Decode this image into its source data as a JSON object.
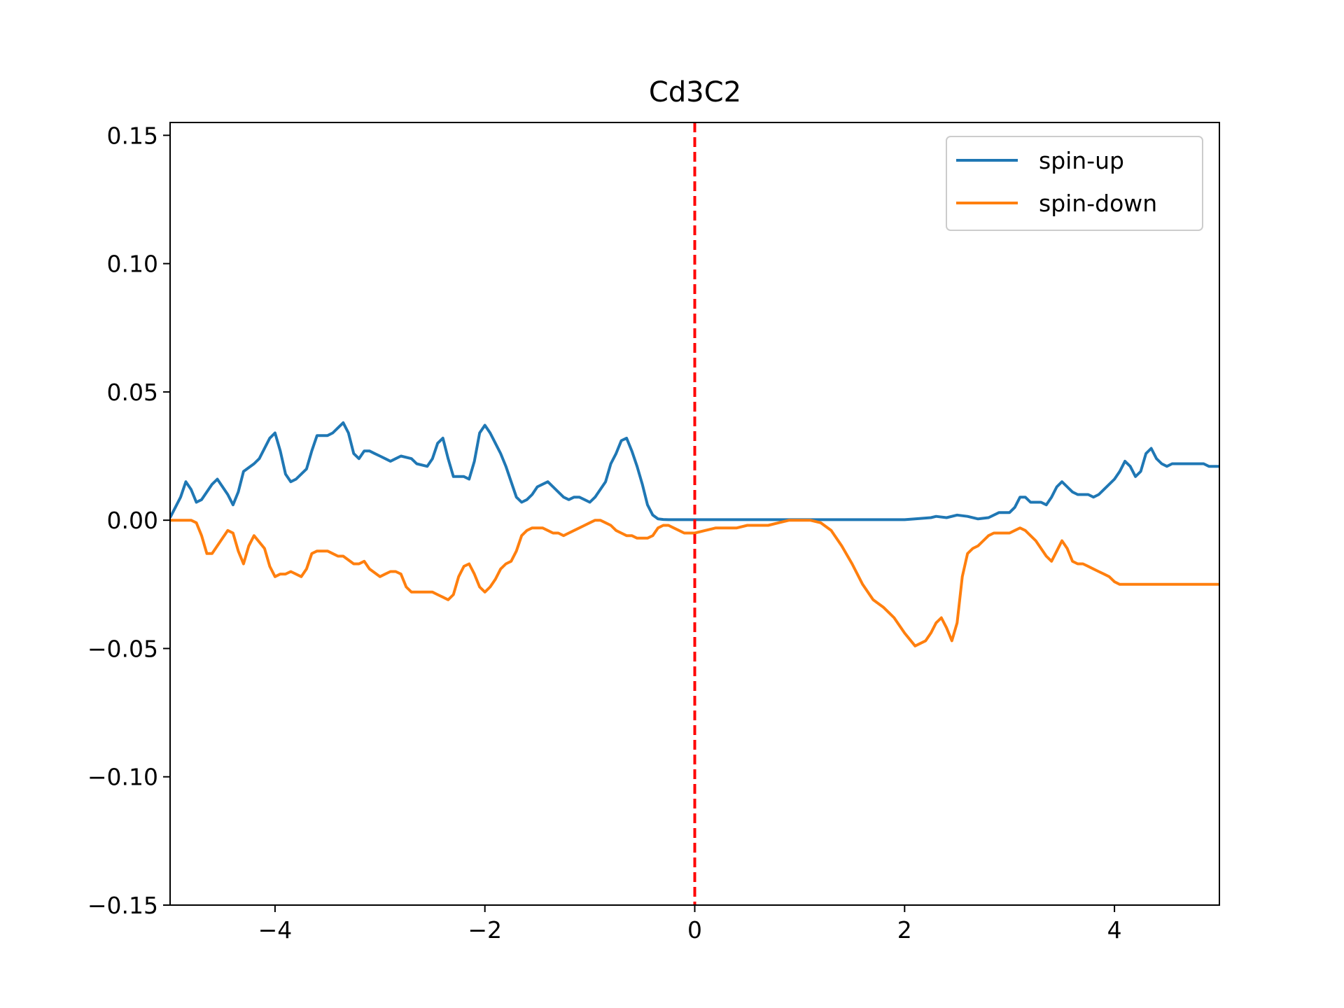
{
  "chart_data": {
    "type": "line",
    "title": "Cd3C2",
    "xlabel": "",
    "ylabel": "",
    "xlim": [
      -5,
      5
    ],
    "ylim": [
      -0.15,
      0.155
    ],
    "xticks": [
      -4,
      -2,
      0,
      2,
      4
    ],
    "xtick_labels": [
      "−4",
      "−2",
      "0",
      "2",
      "4"
    ],
    "yticks": [
      -0.15,
      -0.1,
      -0.05,
      0.0,
      0.05,
      0.1,
      0.15
    ],
    "ytick_labels": [
      "−0.15",
      "−0.10",
      "−0.05",
      "0.00",
      "0.05",
      "0.10",
      "0.15"
    ],
    "grid": false,
    "legend_position": "top-right",
    "vline": {
      "x": 0,
      "color": "#ff0000",
      "style": "dashed"
    },
    "series": [
      {
        "name": "spin-up",
        "color": "#1f77b4",
        "x": [
          -5.0,
          -4.9,
          -4.85,
          -4.8,
          -4.75,
          -4.7,
          -4.6,
          -4.55,
          -4.45,
          -4.4,
          -4.35,
          -4.3,
          -4.2,
          -4.15,
          -4.05,
          -4.0,
          -3.95,
          -3.9,
          -3.85,
          -3.8,
          -3.7,
          -3.65,
          -3.6,
          -3.5,
          -3.45,
          -3.4,
          -3.35,
          -3.3,
          -3.25,
          -3.2,
          -3.15,
          -3.1,
          -3.05,
          -3.0,
          -2.95,
          -2.9,
          -2.85,
          -2.8,
          -2.7,
          -2.65,
          -2.55,
          -2.5,
          -2.45,
          -2.4,
          -2.35,
          -2.3,
          -2.25,
          -2.2,
          -2.15,
          -2.1,
          -2.05,
          -2.0,
          -1.95,
          -1.9,
          -1.85,
          -1.8,
          -1.75,
          -1.7,
          -1.65,
          -1.6,
          -1.55,
          -1.5,
          -1.45,
          -1.4,
          -1.35,
          -1.25,
          -1.2,
          -1.15,
          -1.1,
          -1.05,
          -1.0,
          -0.95,
          -0.9,
          -0.85,
          -0.8,
          -0.75,
          -0.7,
          -0.65,
          -0.6,
          -0.55,
          -0.5,
          -0.45,
          -0.4,
          -0.35,
          -0.3,
          -0.25,
          -0.2,
          -0.15,
          -0.1,
          -0.05,
          0.0,
          0.05,
          0.1,
          0.15,
          0.2,
          0.25,
          0.3,
          0.35,
          0.4,
          0.45,
          0.5,
          0.55,
          0.6,
          0.65,
          0.7,
          0.75,
          0.8,
          1.0,
          1.5,
          2.0,
          2.1,
          2.25,
          2.3,
          2.4,
          2.5,
          2.6,
          2.7,
          2.8,
          2.9,
          3.0,
          3.05,
          3.1,
          3.15,
          3.2,
          3.25,
          3.3,
          3.35,
          3.4,
          3.45,
          3.5,
          3.55,
          3.6,
          3.65,
          3.7,
          3.75,
          3.8,
          3.85,
          3.9,
          4.0,
          4.05,
          4.1,
          4.15,
          4.2,
          4.25,
          4.3,
          4.35,
          4.4,
          4.45,
          4.5,
          4.55,
          4.6,
          4.65,
          4.7,
          4.75,
          4.8,
          4.85,
          4.9,
          5.0
        ],
        "y": [
          0.001,
          0.009,
          0.015,
          0.012,
          0.007,
          0.008,
          0.014,
          0.016,
          0.01,
          0.006,
          0.011,
          0.019,
          0.022,
          0.024,
          0.032,
          0.034,
          0.027,
          0.018,
          0.015,
          0.016,
          0.02,
          0.027,
          0.033,
          0.033,
          0.034,
          0.036,
          0.038,
          0.034,
          0.026,
          0.024,
          0.027,
          0.027,
          0.026,
          0.025,
          0.024,
          0.023,
          0.024,
          0.025,
          0.024,
          0.022,
          0.021,
          0.024,
          0.03,
          0.032,
          0.024,
          0.017,
          0.017,
          0.017,
          0.016,
          0.023,
          0.034,
          0.037,
          0.034,
          0.03,
          0.026,
          0.021,
          0.015,
          0.009,
          0.007,
          0.008,
          0.01,
          0.013,
          0.014,
          0.015,
          0.013,
          0.009,
          0.008,
          0.009,
          0.009,
          0.008,
          0.007,
          0.009,
          0.012,
          0.015,
          0.022,
          0.026,
          0.031,
          0.032,
          0.027,
          0.021,
          0.014,
          0.006,
          0.002,
          0.0005,
          0.0003,
          0.0002,
          0.0002,
          0.0002,
          0.0002,
          0.0002,
          0.0002,
          0.0002,
          0.0002,
          0.0002,
          0.0002,
          0.0002,
          0.0002,
          0.0002,
          0.0002,
          0.0002,
          0.0002,
          0.0002,
          0.0002,
          0.0002,
          0.0002,
          0.0002,
          0.0002,
          0.0002,
          0.0002,
          0.0002,
          0.0005,
          0.001,
          0.0015,
          0.001,
          0.002,
          0.0015,
          0.0005,
          0.001,
          0.003,
          0.003,
          0.005,
          0.009,
          0.009,
          0.007,
          0.007,
          0.007,
          0.006,
          0.009,
          0.013,
          0.015,
          0.013,
          0.011,
          0.01,
          0.01,
          0.01,
          0.009,
          0.01,
          0.012,
          0.016,
          0.019,
          0.023,
          0.021,
          0.017,
          0.019,
          0.026,
          0.028,
          0.024,
          0.022,
          0.021,
          0.022,
          0.022,
          0.022,
          0.022,
          0.022,
          0.022,
          0.022,
          0.021,
          0.021
        ],
        "x_note": ""
      },
      {
        "name": "spin-down",
        "color": "#ff7f0e",
        "x": [
          -5.0,
          -4.8,
          -4.75,
          -4.7,
          -4.65,
          -4.6,
          -4.5,
          -4.45,
          -4.4,
          -4.35,
          -4.3,
          -4.25,
          -4.2,
          -4.1,
          -4.05,
          -4.0,
          -3.95,
          -3.9,
          -3.85,
          -3.75,
          -3.7,
          -3.65,
          -3.6,
          -3.5,
          -3.45,
          -3.4,
          -3.35,
          -3.25,
          -3.2,
          -3.15,
          -3.1,
          -3.0,
          -2.95,
          -2.9,
          -2.85,
          -2.8,
          -2.75,
          -2.7,
          -2.65,
          -2.6,
          -2.55,
          -2.5,
          -2.45,
          -2.4,
          -2.35,
          -2.3,
          -2.25,
          -2.2,
          -2.15,
          -2.1,
          -2.05,
          -2.0,
          -1.95,
          -1.9,
          -1.85,
          -1.8,
          -1.75,
          -1.7,
          -1.65,
          -1.6,
          -1.55,
          -1.5,
          -1.45,
          -1.4,
          -1.35,
          -1.3,
          -1.25,
          -1.2,
          -1.15,
          -1.1,
          -1.05,
          -1.0,
          -0.95,
          -0.9,
          -0.85,
          -0.8,
          -0.75,
          -0.7,
          -0.65,
          -0.6,
          -0.55,
          -0.5,
          -0.45,
          -0.4,
          -0.35,
          -0.3,
          -0.25,
          -0.2,
          -0.15,
          -0.1,
          -0.05,
          0.0,
          0.1,
          0.2,
          0.3,
          0.4,
          0.5,
          0.6,
          0.7,
          0.8,
          0.9,
          1.0,
          1.1,
          1.2,
          1.3,
          1.4,
          1.5,
          1.6,
          1.7,
          1.8,
          1.9,
          2.0,
          2.1,
          2.2,
          2.25,
          2.3,
          2.35,
          2.4,
          2.45,
          2.5,
          2.55,
          2.6,
          2.65,
          2.7,
          2.75,
          2.8,
          2.85,
          2.9,
          2.95,
          3.0,
          3.05,
          3.1,
          3.15,
          3.2,
          3.25,
          3.3,
          3.35,
          3.4,
          3.45,
          3.5,
          3.55,
          3.6,
          3.65,
          3.7,
          3.75,
          3.8,
          3.85,
          3.9,
          3.95,
          4.0,
          4.05,
          4.1,
          4.15,
          4.2,
          4.25,
          4.3,
          4.35,
          4.4,
          4.45,
          4.5,
          4.55,
          4.6,
          4.65,
          4.7,
          4.75,
          4.8,
          4.85,
          4.9,
          4.95,
          5.0
        ],
        "y": [
          0.0,
          0.0,
          -0.001,
          -0.006,
          -0.013,
          -0.013,
          -0.007,
          -0.004,
          -0.005,
          -0.012,
          -0.017,
          -0.01,
          -0.006,
          -0.011,
          -0.018,
          -0.022,
          -0.021,
          -0.021,
          -0.02,
          -0.022,
          -0.019,
          -0.013,
          -0.012,
          -0.012,
          -0.013,
          -0.014,
          -0.014,
          -0.017,
          -0.017,
          -0.016,
          -0.019,
          -0.022,
          -0.021,
          -0.02,
          -0.02,
          -0.021,
          -0.026,
          -0.028,
          -0.028,
          -0.028,
          -0.028,
          -0.028,
          -0.029,
          -0.03,
          -0.031,
          -0.029,
          -0.022,
          -0.018,
          -0.017,
          -0.021,
          -0.026,
          -0.028,
          -0.026,
          -0.023,
          -0.019,
          -0.017,
          -0.016,
          -0.012,
          -0.006,
          -0.004,
          -0.003,
          -0.003,
          -0.003,
          -0.004,
          -0.005,
          -0.005,
          -0.006,
          -0.005,
          -0.004,
          -0.003,
          -0.002,
          -0.001,
          0.0,
          0.0,
          -0.001,
          -0.002,
          -0.004,
          -0.005,
          -0.006,
          -0.006,
          -0.007,
          -0.007,
          -0.007,
          -0.006,
          -0.003,
          -0.002,
          -0.002,
          -0.003,
          -0.004,
          -0.005,
          -0.005,
          -0.005,
          -0.004,
          -0.003,
          -0.003,
          -0.003,
          -0.002,
          -0.002,
          -0.002,
          -0.001,
          0.0,
          0.0,
          0.0,
          -0.001,
          -0.004,
          -0.01,
          -0.017,
          -0.025,
          -0.031,
          -0.034,
          -0.038,
          -0.044,
          -0.049,
          -0.047,
          -0.044,
          -0.04,
          -0.038,
          -0.042,
          -0.047,
          -0.04,
          -0.022,
          -0.013,
          -0.011,
          -0.01,
          -0.008,
          -0.006,
          -0.005,
          -0.005,
          -0.005,
          -0.005,
          -0.004,
          -0.003,
          -0.004,
          -0.006,
          -0.008,
          -0.011,
          -0.014,
          -0.016,
          -0.012,
          -0.008,
          -0.011,
          -0.016,
          -0.017,
          -0.017,
          -0.018,
          -0.019,
          -0.02,
          -0.021,
          -0.022,
          -0.024,
          -0.025,
          -0.025,
          -0.025,
          -0.025,
          -0.025,
          -0.025,
          -0.025,
          -0.025,
          -0.025,
          -0.025,
          -0.025,
          -0.025,
          -0.025,
          -0.025,
          -0.025,
          -0.025,
          -0.025,
          -0.025,
          -0.025,
          -0.025
        ],
        "x_note": ""
      }
    ]
  }
}
